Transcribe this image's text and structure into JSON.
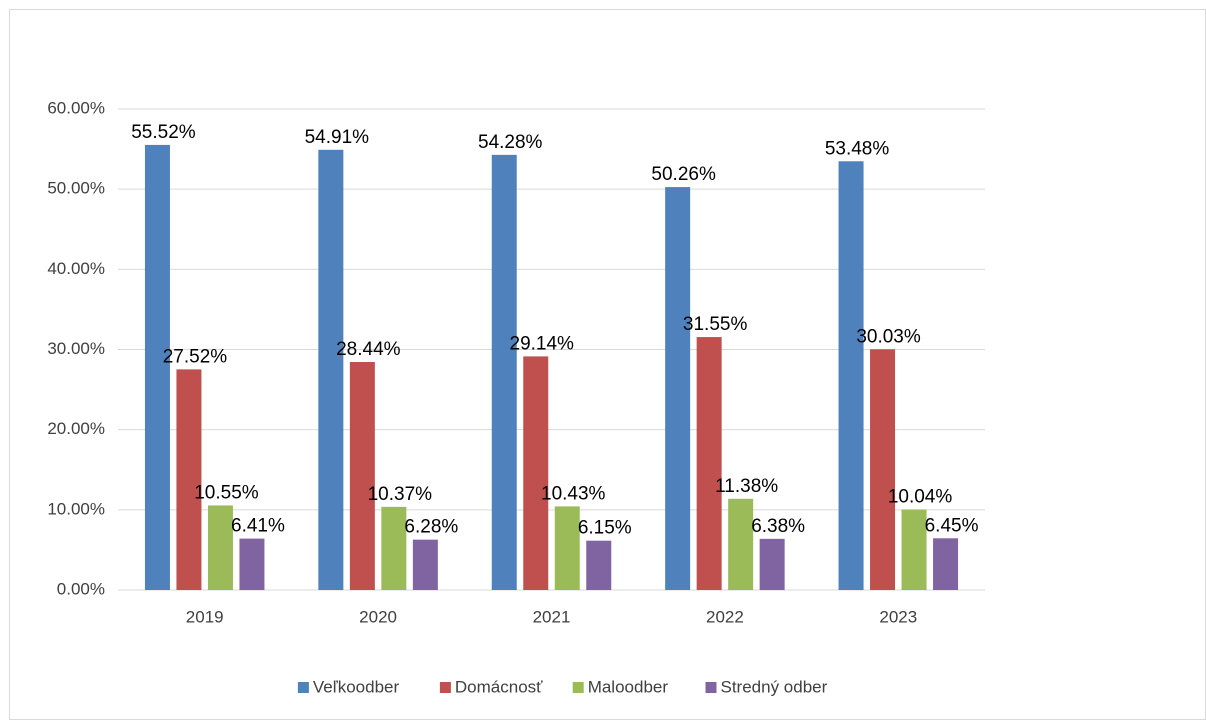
{
  "chart_data": {
    "type": "bar",
    "categories": [
      "2019",
      "2020",
      "2021",
      "2022",
      "2023"
    ],
    "series": [
      {
        "name": "Veľkoodber",
        "color": "#4f81bd",
        "values": [
          55.52,
          54.91,
          54.28,
          50.26,
          53.48
        ],
        "value_labels": [
          "55.52%",
          "54.91%",
          "54.28%",
          "50.26%",
          "53.48%"
        ]
      },
      {
        "name": "Domácnosť",
        "color": "#c0504d",
        "values": [
          27.52,
          28.44,
          29.14,
          31.55,
          30.03
        ],
        "value_labels": [
          "27.52%",
          "28.44%",
          "29.14%",
          "31.55%",
          "30.03%"
        ]
      },
      {
        "name": "Maloodber",
        "color": "#9bbb59",
        "values": [
          10.55,
          10.37,
          10.43,
          11.38,
          10.04
        ],
        "value_labels": [
          "10.55%",
          "10.37%",
          "10.43%",
          "11.38%",
          "10.04%"
        ]
      },
      {
        "name": "Stredný odber",
        "color": "#8064a2",
        "values": [
          6.41,
          6.28,
          6.15,
          6.38,
          6.45
        ],
        "value_labels": [
          "6.41%",
          "6.28%",
          "6.15%",
          "6.38%",
          "6.45%"
        ]
      }
    ],
    "ylim": [
      0,
      60
    ],
    "yticks": [
      {
        "value": 0,
        "label": "0.00%"
      },
      {
        "value": 10,
        "label": "10.00%"
      },
      {
        "value": 20,
        "label": "20.00%"
      },
      {
        "value": 30,
        "label": "30.00%"
      },
      {
        "value": 40,
        "label": "40.00%"
      },
      {
        "value": 50,
        "label": "50.00%"
      },
      {
        "value": 60,
        "label": "60.00%"
      }
    ],
    "grid": true,
    "legend": "bottom"
  }
}
